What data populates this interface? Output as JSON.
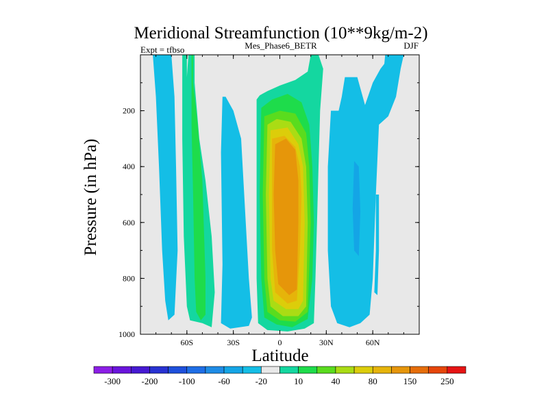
{
  "chart_data": {
    "type": "contour",
    "title": "Meridional Streamfunction (10**9kg/m-2)",
    "left_label": "Expt = tfbso",
    "center_label": "Mes_Phase6_BETR",
    "right_label": "DJF",
    "xlabel": "Latitude",
    "ylabel": "Pressure (in hPa)",
    "xlim": [
      -90,
      90
    ],
    "ylim": [
      1000,
      0
    ],
    "x_ticks": [
      {
        "value": -60,
        "label": "60S"
      },
      {
        "value": -30,
        "label": "30S"
      },
      {
        "value": 0,
        "label": "0"
      },
      {
        "value": 30,
        "label": "30N"
      },
      {
        "value": 60,
        "label": "60N"
      }
    ],
    "y_ticks": [
      {
        "value": 200,
        "label": "200"
      },
      {
        "value": 400,
        "label": "400"
      },
      {
        "value": 600,
        "label": "600"
      },
      {
        "value": 800,
        "label": "800"
      },
      {
        "value": 1000,
        "label": "1000"
      }
    ],
    "background_color": "#e8e8e8",
    "colorbar": {
      "colors": [
        "#8c1ee6",
        "#6a14dc",
        "#4619d2",
        "#2832d2",
        "#1e50dc",
        "#1e6ee6",
        "#1e8ce6",
        "#14a5e6",
        "#14bee6",
        "#e8e8e8",
        "#14d7a0",
        "#1edc4b",
        "#5adc1e",
        "#aadc14",
        "#dccd0a",
        "#e6b40a",
        "#e6960a",
        "#e66e0a",
        "#e6460a",
        "#e61414"
      ],
      "labels": [
        {
          "after_box": 1,
          "text": "-300"
        },
        {
          "after_box": 3,
          "text": "-200"
        },
        {
          "after_box": 5,
          "text": "-100"
        },
        {
          "after_box": 7,
          "text": "-60"
        },
        {
          "after_box": 9,
          "text": "-20"
        },
        {
          "after_box": 11,
          "text": "10"
        },
        {
          "after_box": 13,
          "text": "40"
        },
        {
          "after_box": 15,
          "text": "80"
        },
        {
          "after_box": 17,
          "text": "150"
        },
        {
          "after_box": 19,
          "text": "250"
        }
      ]
    },
    "regions": [
      {
        "name": "sh-polar-cell",
        "color_index": 8,
        "outline": [
          [
            -82,
            0
          ],
          [
            -80,
            150
          ],
          [
            -78,
            400
          ],
          [
            -76,
            700
          ],
          [
            -74,
            880
          ],
          [
            -72,
            950
          ],
          [
            -68,
            930
          ],
          [
            -66,
            700
          ],
          [
            -67,
            400
          ],
          [
            -68,
            150
          ],
          [
            -70,
            0
          ]
        ]
      },
      {
        "name": "sh-ferrel-outer",
        "color_index": 10,
        "outline": [
          [
            -63,
            0
          ],
          [
            -63,
            300
          ],
          [
            -62,
            650
          ],
          [
            -60,
            900
          ],
          [
            -58,
            950
          ],
          [
            -50,
            960
          ],
          [
            -44,
            975
          ],
          [
            -42,
            850
          ],
          [
            -44,
            650
          ],
          [
            -48,
            450
          ],
          [
            -52,
            300
          ],
          [
            -55,
            100
          ],
          [
            -55,
            0
          ],
          [
            -59,
            0
          ],
          [
            -60,
            80
          ],
          [
            -60,
            0
          ]
        ]
      },
      {
        "name": "sh-ferrel-inner",
        "color_index": 11,
        "outline": [
          [
            -57,
            0
          ],
          [
            -57,
            250
          ],
          [
            -56,
            500
          ],
          [
            -55,
            800
          ],
          [
            -54,
            920
          ],
          [
            -51,
            950
          ],
          [
            -48,
            930
          ],
          [
            -48,
            800
          ],
          [
            -50,
            450
          ],
          [
            -53,
            250
          ],
          [
            -56,
            100
          ],
          [
            -56,
            0
          ]
        ]
      },
      {
        "name": "sh-subtropical",
        "color_index": 8,
        "outline": [
          [
            -37,
            150
          ],
          [
            -38,
            350
          ],
          [
            -37,
            750
          ],
          [
            -38,
            960
          ],
          [
            -32,
            980
          ],
          [
            -20,
            970
          ],
          [
            -18,
            940
          ],
          [
            -20,
            800
          ],
          [
            -23,
            500
          ],
          [
            -25,
            300
          ],
          [
            -30,
            200
          ],
          [
            -35,
            150
          ]
        ]
      },
      {
        "name": "hadley-lvl10",
        "color_index": 10,
        "outline": [
          [
            -15,
            160
          ],
          [
            -15,
            500
          ],
          [
            -15,
            800
          ],
          [
            -14,
            960
          ],
          [
            -8,
            985
          ],
          [
            5,
            990
          ],
          [
            16,
            980
          ],
          [
            22,
            960
          ],
          [
            23,
            800
          ],
          [
            24,
            600
          ],
          [
            25,
            400
          ],
          [
            26,
            200
          ],
          [
            28,
            50
          ],
          [
            25,
            0
          ],
          [
            20,
            0
          ],
          [
            18,
            60
          ],
          [
            10,
            90
          ],
          [
            0,
            110
          ],
          [
            -8,
            130
          ],
          [
            -13,
            145
          ]
        ]
      },
      {
        "name": "hadley-lvl11",
        "color_index": 11,
        "outline": [
          [
            -12,
            190
          ],
          [
            -13,
            500
          ],
          [
            -12,
            800
          ],
          [
            -10,
            940
          ],
          [
            -2,
            965
          ],
          [
            8,
            975
          ],
          [
            18,
            945
          ],
          [
            21,
            800
          ],
          [
            22,
            600
          ],
          [
            21,
            400
          ],
          [
            19,
            250
          ],
          [
            14,
            170
          ],
          [
            5,
            140
          ],
          [
            -5,
            160
          ]
        ]
      },
      {
        "name": "hadley-lvl12",
        "color_index": 12,
        "outline": [
          [
            -10,
            220
          ],
          [
            -11,
            500
          ],
          [
            -10,
            800
          ],
          [
            -8,
            920
          ],
          [
            0,
            950
          ],
          [
            10,
            955
          ],
          [
            18,
            920
          ],
          [
            20,
            600
          ],
          [
            19,
            400
          ],
          [
            17,
            280
          ],
          [
            10,
            210
          ],
          [
            0,
            200
          ]
        ]
      },
      {
        "name": "hadley-lvl13",
        "color_index": 13,
        "outline": [
          [
            -8,
            250
          ],
          [
            -9,
            500
          ],
          [
            -8,
            800
          ],
          [
            -6,
            900
          ],
          [
            2,
            935
          ],
          [
            12,
            935
          ],
          [
            17,
            900
          ],
          [
            18,
            600
          ],
          [
            17,
            400
          ],
          [
            14,
            300
          ],
          [
            7,
            240
          ],
          [
            -2,
            230
          ]
        ]
      },
      {
        "name": "hadley-lvl14",
        "color_index": 14,
        "outline": [
          [
            -6,
            270
          ],
          [
            -7,
            500
          ],
          [
            -6,
            800
          ],
          [
            -4,
            880
          ],
          [
            4,
            910
          ],
          [
            12,
            910
          ],
          [
            15,
            880
          ],
          [
            16,
            600
          ],
          [
            15,
            400
          ],
          [
            12,
            320
          ],
          [
            5,
            260
          ]
        ]
      },
      {
        "name": "hadley-lvl15",
        "color_index": 15,
        "outline": [
          [
            -5,
            300
          ],
          [
            -5,
            500
          ],
          [
            -5,
            700
          ],
          [
            -3,
            850
          ],
          [
            5,
            890
          ],
          [
            11,
            880
          ],
          [
            13,
            700
          ],
          [
            14,
            500
          ],
          [
            13,
            400
          ],
          [
            10,
            330
          ],
          [
            3,
            290
          ]
        ]
      },
      {
        "name": "hadley-core",
        "color_index": 16,
        "outline": [
          [
            -3,
            320
          ],
          [
            -4,
            500
          ],
          [
            -3,
            700
          ],
          [
            -1,
            820
          ],
          [
            6,
            860
          ],
          [
            11,
            840
          ],
          [
            12,
            600
          ],
          [
            12,
            450
          ],
          [
            10,
            340
          ],
          [
            4,
            300
          ]
        ]
      },
      {
        "name": "nh-cell",
        "color_index": 8,
        "outline": [
          [
            33,
            200
          ],
          [
            31,
            400
          ],
          [
            31,
            700
          ],
          [
            33,
            900
          ],
          [
            37,
            960
          ],
          [
            45,
            975
          ],
          [
            52,
            960
          ],
          [
            58,
            930
          ],
          [
            60,
            800
          ],
          [
            62,
            500
          ],
          [
            64,
            250
          ],
          [
            70,
            220
          ],
          [
            75,
            150
          ],
          [
            78,
            50
          ],
          [
            80,
            0
          ],
          [
            72,
            0
          ],
          [
            65,
            50
          ],
          [
            60,
            100
          ],
          [
            55,
            180
          ],
          [
            50,
            80
          ],
          [
            42,
            80
          ],
          [
            40,
            150
          ],
          [
            38,
            200
          ]
        ]
      },
      {
        "name": "nh-cell-inner",
        "color_index": 7,
        "outline": [
          [
            48,
            380
          ],
          [
            47,
            550
          ],
          [
            48,
            700
          ],
          [
            51,
            720
          ],
          [
            52,
            560
          ],
          [
            51,
            400
          ]
        ]
      },
      {
        "name": "nh-tail-1",
        "color_index": 8,
        "outline": [
          [
            62,
            500
          ],
          [
            62,
            700
          ],
          [
            61,
            850
          ],
          [
            63,
            860
          ],
          [
            64,
            700
          ],
          [
            64,
            500
          ]
        ]
      },
      {
        "name": "nh-polar-strip",
        "color_index": 8,
        "outline": [
          [
            68,
            0
          ],
          [
            66,
            120
          ],
          [
            68,
            200
          ],
          [
            72,
            100
          ],
          [
            75,
            0
          ]
        ]
      }
    ]
  }
}
